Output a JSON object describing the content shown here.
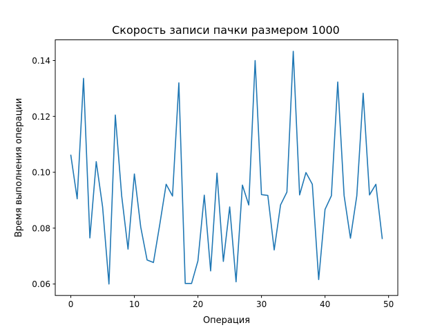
{
  "chart_data": {
    "type": "line",
    "title": "Скорость записи пачки размером 1000",
    "xlabel": "Операция",
    "ylabel": "Время выполнения операции",
    "xlim": [
      -2.45,
      51.45
    ],
    "ylim": [
      0.0559,
      0.1474
    ],
    "xticks": [
      0,
      10,
      20,
      30,
      40,
      50
    ],
    "yticks": [
      0.06,
      0.08,
      0.1,
      0.12,
      0.14
    ],
    "xtick_labels": [
      "0",
      "10",
      "20",
      "30",
      "40",
      "50"
    ],
    "ytick_labels": [
      "0.06",
      "0.08",
      "0.10",
      "0.12",
      "0.14"
    ],
    "grid": false,
    "legend": "none",
    "series": [
      {
        "color": "#1f77b4",
        "x": [
          0,
          1,
          2,
          3,
          4,
          5,
          6,
          7,
          8,
          9,
          10,
          11,
          12,
          13,
          14,
          15,
          16,
          17,
          18,
          19,
          20,
          21,
          22,
          23,
          24,
          25,
          26,
          27,
          28,
          29,
          30,
          31,
          32,
          33,
          34,
          35,
          36,
          37,
          38,
          39,
          40,
          41,
          42,
          43,
          44,
          45,
          46,
          47,
          48,
          49
        ],
        "values": [
          0.1061,
          0.0905,
          0.1336,
          0.0765,
          0.1038,
          0.0876,
          0.06,
          0.1205,
          0.0916,
          0.0725,
          0.0994,
          0.0804,
          0.0686,
          0.0677,
          0.0814,
          0.0957,
          0.0915,
          0.132,
          0.0602,
          0.0602,
          0.0683,
          0.0918,
          0.0647,
          0.0997,
          0.0681,
          0.0876,
          0.0608,
          0.0954,
          0.0883,
          0.14,
          0.092,
          0.0917,
          0.0722,
          0.0883,
          0.0929,
          0.1433,
          0.0919,
          0.0999,
          0.0957,
          0.0616,
          0.0867,
          0.0916,
          0.1323,
          0.0917,
          0.0764,
          0.0916,
          0.1283,
          0.0919,
          0.0957,
          0.0763
        ]
      }
    ]
  }
}
